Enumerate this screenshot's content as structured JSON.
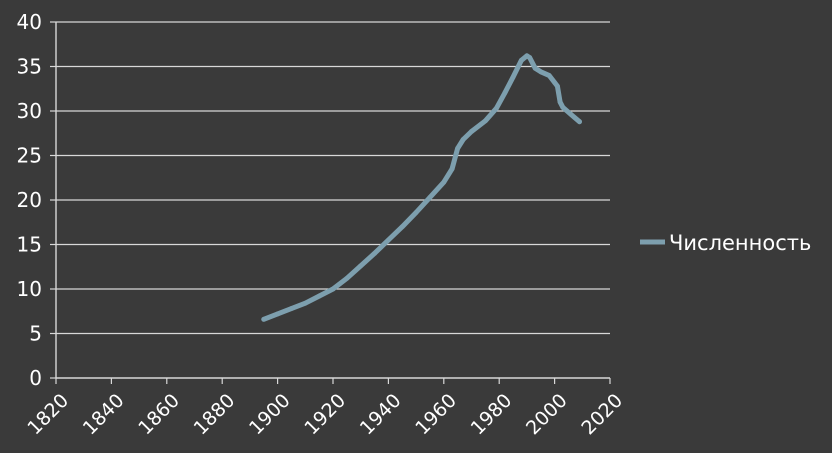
{
  "chart_data": {
    "type": "line",
    "title": "",
    "xlabel": "",
    "ylabel": "",
    "xlim": [
      1820,
      2020
    ],
    "ylim": [
      0,
      40
    ],
    "x_ticks": [
      1820,
      1840,
      1860,
      1880,
      1900,
      1920,
      1940,
      1960,
      1980,
      2000,
      2020
    ],
    "y_ticks": [
      0,
      5,
      10,
      15,
      20,
      25,
      30,
      35,
      40
    ],
    "grid": "horizontal",
    "legend_position": "right",
    "colors": {
      "background": "#3a3a3a",
      "grid": "#d8d8d8",
      "axis": "#d8d8d8",
      "text": "#ffffff",
      "series": "#7d9fae"
    },
    "series": [
      {
        "name": "Численность",
        "x": [
          1895,
          1900,
          1905,
          1910,
          1915,
          1920,
          1925,
          1930,
          1935,
          1940,
          1945,
          1950,
          1955,
          1960,
          1963,
          1965,
          1967,
          1970,
          1975,
          1979,
          1982,
          1985,
          1988,
          1990,
          1991,
          1993,
          1995,
          1998,
          2000,
          2001,
          2002,
          2003,
          2006,
          2009
        ],
        "y": [
          6.6,
          7.2,
          7.8,
          8.4,
          9.2,
          10.0,
          11.2,
          12.6,
          14.0,
          15.5,
          17.0,
          18.6,
          20.3,
          22.0,
          23.5,
          25.8,
          26.8,
          27.7,
          28.9,
          30.3,
          32.0,
          33.8,
          35.7,
          36.2,
          36.0,
          34.8,
          34.4,
          34.0,
          33.2,
          32.8,
          31.0,
          30.4,
          29.6,
          28.8
        ]
      }
    ]
  }
}
